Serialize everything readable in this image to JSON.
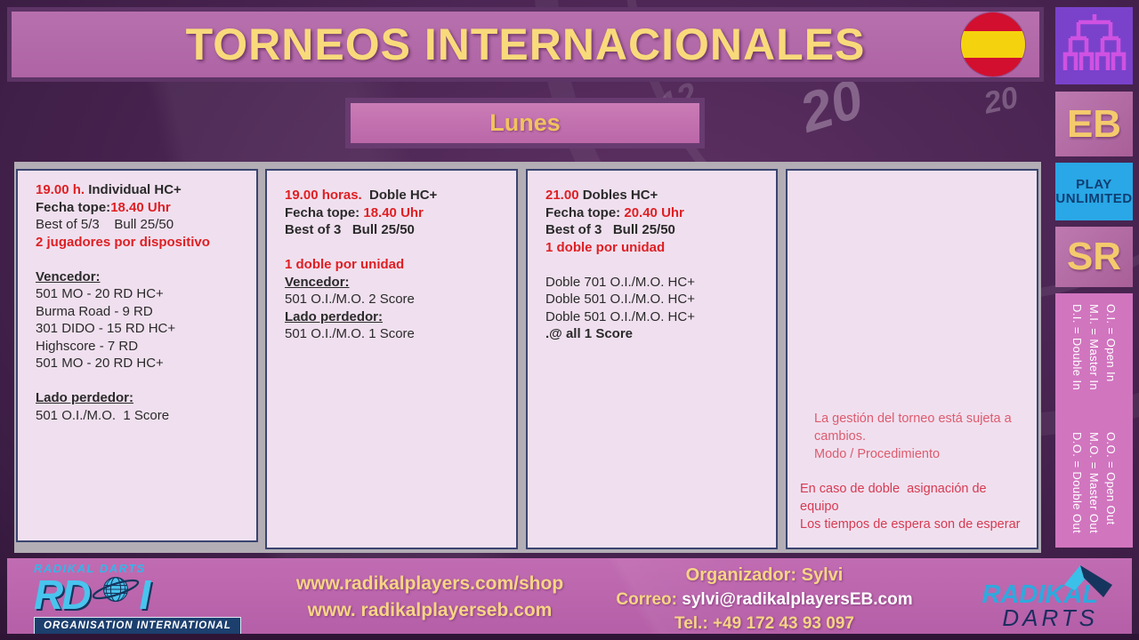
{
  "header": {
    "title": "TORNEOS INTERNACIONALES"
  },
  "icons": {
    "flag": "spain-flag",
    "bracket": "tournament-bracket",
    "globe": "globe",
    "ribbon": "radikal-ribbon"
  },
  "day_button": {
    "label": "Lunes"
  },
  "background": {
    "watermarks": [
      "12",
      "20",
      "20"
    ]
  },
  "columns": [
    {
      "name": "individual-19h",
      "lines": [
        {
          "segments": [
            {
              "t": "19.00 h.",
              "cls": "red b"
            },
            {
              "t": " Individual HC+",
              "cls": "b"
            }
          ]
        },
        {
          "segments": [
            {
              "t": "Fecha tope:",
              "cls": "b"
            },
            {
              "t": "18.40 Uhr",
              "cls": "red b"
            }
          ]
        },
        {
          "segments": [
            {
              "t": "Best of 5/3    Bull 25/50",
              "cls": ""
            }
          ]
        },
        {
          "segments": [
            {
              "t": "2 jugadores por dispositivo",
              "cls": "red b"
            }
          ]
        },
        {
          "blank": true
        },
        {
          "segments": [
            {
              "t": "Vencedor:",
              "cls": "b u"
            }
          ]
        },
        {
          "segments": [
            {
              "t": "501 MO - 20 RD HC+",
              "cls": ""
            }
          ]
        },
        {
          "segments": [
            {
              "t": "Burma Road - 9 RD",
              "cls": ""
            }
          ]
        },
        {
          "segments": [
            {
              "t": "301 DIDO - 15 RD HC+",
              "cls": ""
            }
          ]
        },
        {
          "segments": [
            {
              "t": "Highscore - 7 RD",
              "cls": ""
            }
          ]
        },
        {
          "segments": [
            {
              "t": "501 MO - 20 RD HC+",
              "cls": ""
            }
          ]
        },
        {
          "blank": true
        },
        {
          "segments": [
            {
              "t": "Lado perdedor:",
              "cls": "b u"
            }
          ]
        },
        {
          "segments": [
            {
              "t": "501 O.I./M.O.  1 Score",
              "cls": ""
            }
          ]
        }
      ]
    },
    {
      "name": "doble-19h",
      "lines": [
        {
          "segments": [
            {
              "t": "19.00 horas.",
              "cls": "red b"
            },
            {
              "t": "  Doble HC+",
              "cls": "b"
            }
          ]
        },
        {
          "segments": [
            {
              "t": "Fecha tope: ",
              "cls": "b"
            },
            {
              "t": "18.40 Uhr",
              "cls": "red b"
            }
          ]
        },
        {
          "segments": [
            {
              "t": "Best of 3   Bull 25/50",
              "cls": "b"
            }
          ]
        },
        {
          "blank": true
        },
        {
          "segments": [
            {
              "t": "1 doble por unidad",
              "cls": "red b"
            }
          ]
        },
        {
          "segments": [
            {
              "t": "Vencedor:",
              "cls": "b u"
            }
          ]
        },
        {
          "segments": [
            {
              "t": "501 O.I./M.O. 2 Score",
              "cls": ""
            }
          ]
        },
        {
          "segments": [
            {
              "t": "Lado perdedor:",
              "cls": "b u"
            }
          ]
        },
        {
          "segments": [
            {
              "t": "501 O.I./M.O. 1 Score",
              "cls": ""
            }
          ]
        }
      ]
    },
    {
      "name": "dobles-21h",
      "lines": [
        {
          "segments": [
            {
              "t": "21.00 ",
              "cls": "red b"
            },
            {
              "t": "Dobles HC+",
              "cls": "b"
            }
          ]
        },
        {
          "segments": [
            {
              "t": "Fecha tope: ",
              "cls": "b"
            },
            {
              "t": "20.40 Uhr",
              "cls": "red b"
            }
          ]
        },
        {
          "segments": [
            {
              "t": "Best of 3   Bull 25/50",
              "cls": "b"
            }
          ]
        },
        {
          "segments": [
            {
              "t": "1 doble por unidad",
              "cls": "red b"
            }
          ]
        },
        {
          "blank": true
        },
        {
          "segments": [
            {
              "t": "Doble 701 O.I./M.O. HC+",
              "cls": ""
            }
          ]
        },
        {
          "segments": [
            {
              "t": "Doble 501 O.I./M.O. HC+",
              "cls": ""
            }
          ]
        },
        {
          "segments": [
            {
              "t": "Doble 501 O.I./M.O. HC+",
              "cls": ""
            }
          ]
        },
        {
          "segments": [
            {
              "t": ".@ all 1 Score",
              "cls": "b"
            }
          ]
        }
      ]
    },
    {
      "name": "notes",
      "lines": [
        {
          "ind": true,
          "segments": [
            {
              "t": "La gestión del torneo está sujeta a cambios.",
              "cls": "rose"
            }
          ]
        },
        {
          "ind": true,
          "segments": [
            {
              "t": "Modo / Procedimiento",
              "cls": "rose"
            }
          ]
        },
        {
          "blank": true
        },
        {
          "segments": [
            {
              "t": "En caso de doble  asignación de equipo",
              "cls": "rose2"
            }
          ]
        },
        {
          "segments": [
            {
              "t": "Los tiempos de espera son de esperar",
              "cls": "rose2"
            }
          ]
        }
      ]
    }
  ],
  "sidebar": {
    "eb_label": "EB",
    "play_line1": "PLAY",
    "play_line2": "UNLIMITED",
    "sr_label": "SR",
    "legend": {
      "in_rules": [
        "O.I. = Open In",
        "M.I. = Master In",
        "D.I. = Double In"
      ],
      "out_rules": [
        "O.O. = Open Out",
        "M.O. = Master Out",
        "D.O. = Double Out"
      ]
    }
  },
  "footer": {
    "rdi_logo": {
      "top_text": "RADIKAL DARTS",
      "letters_left": "RD",
      "letters_right": "I",
      "banner": "ORGANISATION INTERNATIONAL"
    },
    "urls": [
      "www.radikalplayers.com/shop",
      "www. radikalplayerseb.com"
    ],
    "organizer": "Organizador:  Sylvi",
    "correo_label": "Correo: ",
    "email": "sylvi@radikalplayersEB.com",
    "tel": "Tel.: +49 172 43 93 097",
    "rd_logo": {
      "line1": "RADIKAL",
      "line2": "DARTS"
    }
  },
  "colors": {
    "accent_red": "#df1f23",
    "note_rose": "#dd5b6e",
    "cyan": "#35b6e8",
    "navy": "#16355e",
    "yellow": "#f2c35e",
    "mauve": "#b269a9"
  }
}
